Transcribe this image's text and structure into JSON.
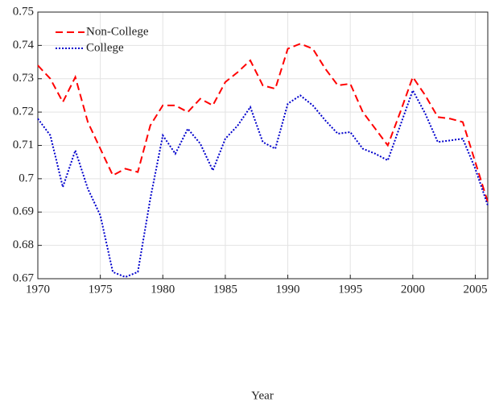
{
  "chart_data": {
    "type": "line",
    "xlabel": "Year",
    "x": [
      1970,
      1971,
      1972,
      1973,
      1974,
      1975,
      1976,
      1977,
      1978,
      1979,
      1980,
      1981,
      1982,
      1983,
      1984,
      1985,
      1986,
      1987,
      1988,
      1989,
      1990,
      1991,
      1992,
      1993,
      1994,
      1995,
      1996,
      1997,
      1998,
      1999,
      2000,
      2001,
      2002,
      2003,
      2004,
      2005,
      2006
    ],
    "series": [
      {
        "name": "Non-College",
        "color": "#ff0000",
        "dash": "dashed",
        "values": [
          0.734,
          0.73,
          0.723,
          0.7305,
          0.717,
          0.709,
          0.701,
          0.703,
          0.702,
          0.716,
          0.722,
          0.722,
          0.72,
          0.724,
          0.722,
          0.729,
          0.732,
          0.7355,
          0.728,
          0.727,
          0.739,
          0.7405,
          0.739,
          0.733,
          0.728,
          0.7285,
          0.72,
          0.715,
          0.71,
          0.72,
          0.7305,
          0.725,
          0.7185,
          0.718,
          0.717,
          0.705,
          0.693
        ]
      },
      {
        "name": "College",
        "color": "#0000cc",
        "dash": "dotted",
        "values": [
          0.718,
          0.713,
          0.6975,
          0.7085,
          0.697,
          0.689,
          0.672,
          0.6705,
          0.672,
          0.694,
          0.713,
          0.7075,
          0.715,
          0.7105,
          0.7025,
          0.712,
          0.716,
          0.7215,
          0.711,
          0.709,
          0.7225,
          0.725,
          0.722,
          0.7175,
          0.7135,
          0.714,
          0.709,
          0.7075,
          0.7055,
          0.716,
          0.7265,
          0.7195,
          0.711,
          0.7115,
          0.712,
          0.703,
          0.692
        ]
      }
    ],
    "xlim": [
      1970,
      2006
    ],
    "xticks": [
      1970,
      1975,
      1980,
      1985,
      1990,
      1995,
      2000,
      2005
    ],
    "ylim": [
      0.67,
      0.75
    ],
    "yticks": [
      0.67,
      0.68,
      0.69,
      0.7,
      0.71,
      0.72,
      0.73,
      0.74,
      0.75
    ],
    "grid": true,
    "legend": "upper-left"
  }
}
